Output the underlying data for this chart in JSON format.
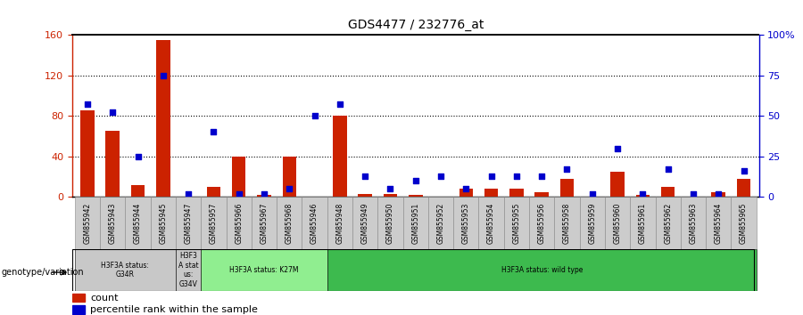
{
  "title": "GDS4477 / 232776_at",
  "samples": [
    "GSM855942",
    "GSM855943",
    "GSM855944",
    "GSM855945",
    "GSM855947",
    "GSM855957",
    "GSM855966",
    "GSM855967",
    "GSM855968",
    "GSM855946",
    "GSM855948",
    "GSM855949",
    "GSM855950",
    "GSM855951",
    "GSM855952",
    "GSM855953",
    "GSM855954",
    "GSM855955",
    "GSM855956",
    "GSM855958",
    "GSM855959",
    "GSM855960",
    "GSM855961",
    "GSM855962",
    "GSM855963",
    "GSM855964",
    "GSM855965"
  ],
  "counts": [
    85,
    65,
    12,
    155,
    0,
    10,
    40,
    2,
    40,
    0,
    80,
    3,
    3,
    2,
    0,
    8,
    8,
    8,
    5,
    18,
    0,
    25,
    2,
    10,
    0,
    5,
    18
  ],
  "percentile": [
    57,
    52,
    25,
    75,
    2,
    40,
    2,
    2,
    5,
    50,
    57,
    13,
    5,
    10,
    13,
    5,
    13,
    13,
    13,
    17,
    2,
    30,
    2,
    17,
    2,
    2,
    16
  ],
  "groups": [
    {
      "label": "H3F3A status:\nG34R",
      "start": 0,
      "end": 4,
      "color": "#c8c8c8",
      "text_color": "#000000"
    },
    {
      "label": "H3F3\nA stat\nus:\nG34V",
      "start": 4,
      "end": 5,
      "color": "#c8c8c8",
      "text_color": "#000000"
    },
    {
      "label": "H3F3A status: K27M",
      "start": 5,
      "end": 10,
      "color": "#90ee90",
      "text_color": "#000000"
    },
    {
      "label": "H3F3A status: wild type",
      "start": 10,
      "end": 27,
      "color": "#3dba4e",
      "text_color": "#000000"
    }
  ],
  "ylim_left": [
    0,
    160
  ],
  "ylim_right": [
    0,
    100
  ],
  "yticks_left": [
    0,
    40,
    80,
    120,
    160
  ],
  "ytick_labels_left": [
    "0",
    "40",
    "80",
    "120",
    "160"
  ],
  "yticks_right": [
    0,
    25,
    50,
    75,
    100
  ],
  "ytick_labels_right": [
    "0",
    "25",
    "50",
    "75",
    "100%"
  ],
  "bar_color": "#cc2200",
  "dot_color": "#0000cc",
  "genotype_label": "genotype/variation"
}
